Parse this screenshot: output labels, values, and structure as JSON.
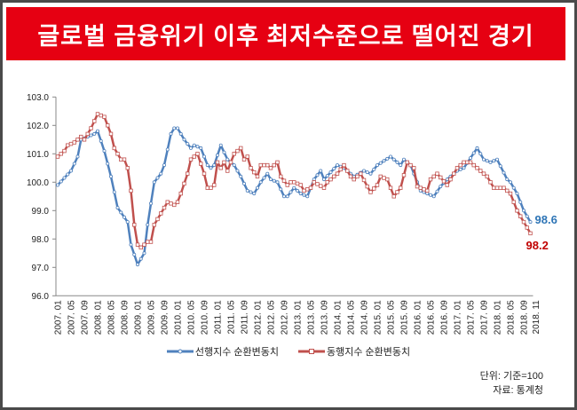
{
  "title": "글로벌 금융위기 이후 최저수준으로 떨어진 경기",
  "chart_data": {
    "type": "line",
    "title": "글로벌 금융위기 이후 최저수준으로 떨어진 경기",
    "start_month": "2007.01",
    "x_note": "series points are [month index from 2007.01, value]; monthly values interpolated between points",
    "ylim": [
      96.0,
      103.0
    ],
    "yticks": [
      "96.0",
      "97.0",
      "98.0",
      "99.0",
      "100.0",
      "101.0",
      "102.0",
      "103.0"
    ],
    "xticks": [
      "2007. 01",
      "2007. 05",
      "2007. 09",
      "2008. 01",
      "2008. 05",
      "2008. 09",
      "2009. 01",
      "2009. 05",
      "2009. 09",
      "2010. 01",
      "2010. 05",
      "2010. 09",
      "2011. 01",
      "2011. 05",
      "2011. 09",
      "2012. 01",
      "2012. 05",
      "2012. 09",
      "2013. 01",
      "2013. 05",
      "2013. 09",
      "2014. 01",
      "2014. 05",
      "2014. 09",
      "2015. 01",
      "2015. 05",
      "2015. 09",
      "2016. 01",
      "2016. 05",
      "2016. 09",
      "2017. 01",
      "2017. 05",
      "2017. 09",
      "2018. 01",
      "2018. 05",
      "2018. 09",
      "2018. 11"
    ],
    "grid": false,
    "legend_position": "bottom",
    "series": [
      {
        "name": "선행지수 순환변동치",
        "color": "#4f81bd",
        "marker": "circle",
        "end_label": "98.6",
        "label_color": "#2e75b6",
        "points": [
          [
            0,
            99.9
          ],
          [
            4,
            100.4
          ],
          [
            6,
            100.9
          ],
          [
            7,
            101.5
          ],
          [
            11,
            101.7
          ],
          [
            12,
            101.8
          ],
          [
            14,
            101.1
          ],
          [
            16,
            100.2
          ],
          [
            18,
            99.1
          ],
          [
            21,
            98.6
          ],
          [
            22,
            97.8
          ],
          [
            24,
            97.1
          ],
          [
            26,
            97.5
          ],
          [
            27,
            98.5
          ],
          [
            29,
            100.0
          ],
          [
            31,
            100.3
          ],
          [
            32,
            100.6
          ],
          [
            34,
            101.7
          ],
          [
            35,
            101.9
          ],
          [
            36,
            101.9
          ],
          [
            38,
            101.5
          ],
          [
            40,
            101.2
          ],
          [
            41,
            101.3
          ],
          [
            43,
            101.2
          ],
          [
            45,
            100.6
          ],
          [
            46,
            100.5
          ],
          [
            47,
            100.6
          ],
          [
            49,
            101.3
          ],
          [
            51,
            100.8
          ],
          [
            53,
            100.6
          ],
          [
            55,
            100.2
          ],
          [
            57,
            99.7
          ],
          [
            59,
            99.6
          ],
          [
            61,
            100.0
          ],
          [
            63,
            100.3
          ],
          [
            64,
            100.1
          ],
          [
            66,
            100.0
          ],
          [
            68,
            99.5
          ],
          [
            69,
            99.5
          ],
          [
            71,
            99.8
          ],
          [
            73,
            99.6
          ],
          [
            75,
            99.5
          ],
          [
            77,
            100.1
          ],
          [
            79,
            100.4
          ],
          [
            80,
            100.1
          ],
          [
            84,
            100.6
          ],
          [
            86,
            100.5
          ],
          [
            89,
            100.2
          ],
          [
            92,
            100.4
          ],
          [
            94,
            100.3
          ],
          [
            96,
            100.6
          ],
          [
            100,
            100.9
          ],
          [
            103,
            100.6
          ],
          [
            104,
            100.8
          ],
          [
            106,
            100.6
          ],
          [
            109,
            99.7
          ],
          [
            111,
            99.6
          ],
          [
            113,
            99.5
          ],
          [
            115,
            99.85
          ],
          [
            117,
            100.1
          ],
          [
            120,
            100.4
          ],
          [
            122,
            100.5
          ],
          [
            126,
            101.2
          ],
          [
            128,
            100.8
          ],
          [
            130,
            100.7
          ],
          [
            132,
            100.8
          ],
          [
            135,
            100.1
          ],
          [
            136,
            100.0
          ],
          [
            138,
            99.6
          ],
          [
            140,
            99.0
          ],
          [
            142,
            98.6
          ]
        ]
      },
      {
        "name": "동행지수 순환변동치",
        "color": "#c0504d",
        "marker": "square",
        "end_label": "98.2",
        "label_color": "#c00000",
        "points": [
          [
            0,
            100.9
          ],
          [
            2,
            101.1
          ],
          [
            3,
            101.3
          ],
          [
            5,
            101.4
          ],
          [
            6,
            101.5
          ],
          [
            7,
            101.6
          ],
          [
            8,
            101.5
          ],
          [
            10,
            101.9
          ],
          [
            12,
            102.4
          ],
          [
            14,
            102.3
          ],
          [
            15,
            102.0
          ],
          [
            16,
            101.7
          ],
          [
            17,
            101.2
          ],
          [
            19,
            100.8
          ],
          [
            20,
            100.8
          ],
          [
            21,
            100.5
          ],
          [
            22,
            99.7
          ],
          [
            23,
            98.5
          ],
          [
            24,
            97.8
          ],
          [
            25,
            97.7
          ],
          [
            27,
            97.9
          ],
          [
            28,
            97.9
          ],
          [
            29,
            98.5
          ],
          [
            31,
            98.9
          ],
          [
            33,
            99.3
          ],
          [
            35,
            99.2
          ],
          [
            36,
            99.3
          ],
          [
            37,
            99.6
          ],
          [
            39,
            100.3
          ],
          [
            40,
            100.8
          ],
          [
            41,
            100.9
          ],
          [
            42,
            101.0
          ],
          [
            44,
            100.3
          ],
          [
            45,
            99.8
          ],
          [
            46,
            99.8
          ],
          [
            47,
            99.9
          ],
          [
            48,
            100.7
          ],
          [
            49,
            100.5
          ],
          [
            50,
            100.7
          ],
          [
            51,
            100.4
          ],
          [
            53,
            101.0
          ],
          [
            54,
            101.1
          ],
          [
            55,
            101.2
          ],
          [
            56,
            100.8
          ],
          [
            57,
            100.9
          ],
          [
            58,
            100.5
          ],
          [
            60,
            100.2
          ],
          [
            61,
            100.6
          ],
          [
            63,
            100.6
          ],
          [
            64,
            100.5
          ],
          [
            66,
            100.7
          ],
          [
            67,
            100.2
          ],
          [
            69,
            99.9
          ],
          [
            70,
            100.0
          ],
          [
            71,
            100.0
          ],
          [
            73,
            99.9
          ],
          [
            74,
            99.7
          ],
          [
            76,
            99.8
          ],
          [
            77,
            100.0
          ],
          [
            80,
            99.8
          ],
          [
            81,
            100.0
          ],
          [
            84,
            100.3
          ],
          [
            86,
            100.6
          ],
          [
            88,
            100.2
          ],
          [
            89,
            100.1
          ],
          [
            91,
            100.3
          ],
          [
            93,
            99.85
          ],
          [
            94,
            99.65
          ],
          [
            96,
            99.9
          ],
          [
            97,
            100.2
          ],
          [
            99,
            100.1
          ],
          [
            100,
            99.8
          ],
          [
            101,
            99.5
          ],
          [
            103,
            99.8
          ],
          [
            105,
            100.7
          ],
          [
            107,
            100.5
          ],
          [
            108,
            99.85
          ],
          [
            111,
            99.7
          ],
          [
            112,
            100.1
          ],
          [
            114,
            100.3
          ],
          [
            117,
            99.9
          ],
          [
            120,
            100.5
          ],
          [
            122,
            100.7
          ],
          [
            124,
            100.7
          ],
          [
            127,
            100.4
          ],
          [
            129,
            100.2
          ],
          [
            131,
            99.8
          ],
          [
            134,
            99.8
          ],
          [
            136,
            99.6
          ],
          [
            138,
            99.0
          ],
          [
            140,
            98.6
          ],
          [
            142,
            98.2
          ]
        ]
      }
    ]
  },
  "legend": [
    "선행지수 순환변동치",
    "동행지수 순환변동치"
  ],
  "footnote": {
    "unit": "단위: 기준=100",
    "source": "자료: 통계청"
  }
}
